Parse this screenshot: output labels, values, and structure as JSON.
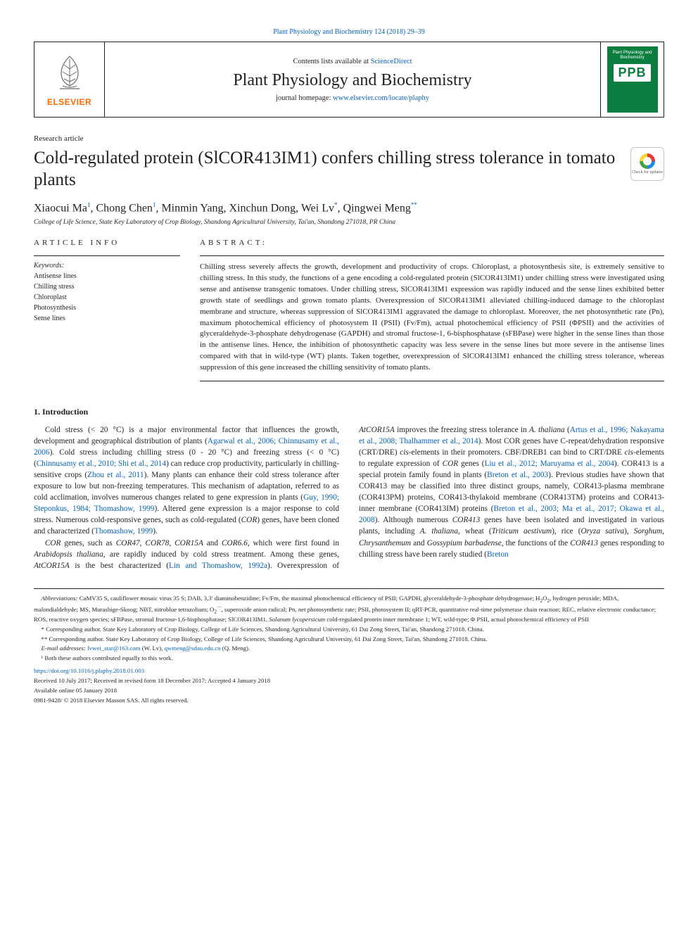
{
  "journal_ref": "Plant Physiology and Biochemistry 124 (2018) 29–39",
  "header": {
    "contents_prefix": "Contents lists available at ",
    "contents_link": "ScienceDirect",
    "journal_name": "Plant Physiology and Biochemistry",
    "homepage_prefix": "journal homepage: ",
    "homepage_link": "www.elsevier.com/locate/plaphy",
    "elsevier_text": "ELSEVIER",
    "cover_title": "Plant Physiology and Biochemistry",
    "cover_abbrev": "PPB"
  },
  "crossmark": "Check for updates",
  "article_type": "Research article",
  "title": "Cold-regulated protein (SlCOR413IM1) confers chilling stress tolerance in tomato plants",
  "authors_html": "Xiaocui Ma<sup>1</sup>, Chong Chen<sup>1</sup>, Minmin Yang, Xinchun Dong, Wei Lv<sup>*</sup>, Qingwei Meng<sup>**</sup>",
  "affiliation": "College of Life Science, State Key Laboratory of Crop Biology, Shandong Agricultural University, Tai'an, Shandong 271018, PR China",
  "article_info_heading": "ARTICLE INFO",
  "abstract_heading": "ABSTRACT:",
  "keywords_label": "Keywords:",
  "keywords": [
    "Antisense lines",
    "Chilling stress",
    "Chloroplast",
    "Photosynthesis",
    "Sense lines"
  ],
  "abstract": "Chilling stress severely affects the growth, development and productivity of crops. Chloroplast, a photosynthesis site, is extremely sensitive to chilling stress. In this study, the functions of a gene encoding a cold-regulated protein (SlCOR413IM1) under chilling stress were investigated using sense and antisense transgenic tomatoes. Under chilling stress, SlCOR413IM1 expression was rapidly induced and the sense lines exhibited better growth state of seedlings and grown tomato plants. Overexpression of SlCOR413IM1 alleviated chilling-induced damage to the chloroplast membrane and structure, whereas suppression of SlCOR413IM1 aggravated the damage to chloroplast. Moreover, the net photosynthetic rate (Pn), maximum photochemical efficiency of photosystem II (PSII) (Fv/Fm), actual photochemical efficiency of PSII (ΦPSII) and the activities of glyceraldehyde-3-phosphate dehydrogenase (GAPDH) and stromal fructose-1, 6-bisphosphatase (sFBPase) were higher in the sense lines than those in the antisense lines. Hence, the inhibition of photosynthetic capacity was less severe in the sense lines but more severe in the antisense lines compared with that in wild-type (WT) plants. Taken together, overexpression of SlCOR413IM1 enhanced the chilling stress tolerance, whereas suppression of this gene increased the chilling sensitivity of tomato plants.",
  "intro_heading": "1. Introduction",
  "intro_p1_html": "Cold stress (&lt; 20 °C) is a major environmental factor that influences the growth, development and geographical distribution of plants (<a class='link'>Agarwal et al., 2006; Chinnusamy et al., 2006</a>). Cold stress including chilling stress (0 - 20 °C) and freezing stress (&lt; 0 °C) (<a class='link'>Chinnusamy et al., 2010; Shi et al., 2014</a>) can reduce crop productivity, particularly in chilling-sensitive crops (<a class='link'>Zhou et al., 2011</a>). Many plants can enhance their cold stress tolerance after exposure to low but non-freezing temperatures. This mechanism of adaptation, referred to as cold acclimation, involves numerous changes related to gene expression in plants (<a class='link'>Guy, 1990; Steponkus, 1984; Thomashow, 1999</a>). Altered gene expression is a major response to cold stress. Numerous cold-responsive genes, such as cold-regulated (<em>COR</em>) genes, have been cloned and characterized (<a class='link'>Thomashow, 1999</a>).",
  "intro_p2_html": "<em>COR</em> genes, such as <em>COR47</em>, <em>COR78</em>, <em>COR15A</em> and <em>COR6.6</em>, which were first found in <em>Arabidopsis thaliana</em>, are rapidly induced by cold stress treatment. Among these genes, <em>AtCOR15A</em> is the best characterized (<a class='link'>Lin and Thomashow, 1992a</a>). Overexpression of <em>AtCOR15A</em> improves the freezing stress tolerance in <em>A. thaliana</em> (<a class='link'>Artus et al., 1996; Nakayama et al., 2008; Thalhammer et al., 2014</a>). Most COR genes have C-repeat/dehydration responsive (CRT/DRE) <em>cis</em>-elements in their promoters. CBF/DREB1 can bind to CRT/DRE <em>cis</em>-elements to regulate expression of <em>COR</em> genes (<a class='link'>Liu et al., 2012; Maruyama et al., 2004</a>). COR413 is a special protein family found in plants (<a class='link'>Breton et al., 2003</a>). Previous studies have shown that COR413 may be classified into three distinct groups, namely, COR413-plasma membrane (COR413PM) proteins, COR413-thylakoid membrane (COR413TM) proteins and COR413-inner membrane (COR413IM) proteins (<a class='link'>Breton et al., 2003; Ma et al., 2017; Okawa et al., 2008</a>). Although numerous <em>COR413</em> genes have been isolated and investigated in various plants, including <em>A. thaliana</em>, wheat (<em>Triticum aestivum</em>), rice (<em>Oryza sativa</em>), <em>Sorghum</em>, <em>Chrysanthemum</em> and <em>Gossypium barbadense</em>, the functions of the <em>COR413</em> genes responding to chilling stress have been rarely studied (<a class='link'>Breton</a>",
  "footnotes": {
    "abbrev_html": "<em>Abbreviations:</em> CaMV35 S, cauliflower mosaic virus 35 S; DAB, 3,3′ diaminobenzidine; Fv/Fm, the maximal photochemical efficiency of PSII; GAPDH, glyceraldehyde-3-phosphate dehydrogenase; H<sub>2</sub>O<sub>2</sub>, hydrogen peroxide; MDA, malondialdehyde; MS, Murashige-Skoog; NBT, nitroblue tetrazolium; O<sub>2</sub><sup>·−</sup>, superoxide anion radical; Pn, net photosynthetic rate; PSII, photosystem II; qRT-PCR, quantitative real-time polymerase chain reaction; REC, relative electronic conductance; ROS, reactive oxygen species; sFBPase, stromal fructose-1,6-bisphosphatase; SlCOR413IM1, <em>Solanum lycopersicum</em> cold-regulated protein inner membrane 1; WT, wild-type; Φ PSII, actual photochemical efficiency of PSII",
    "corr1": "* Corresponding author. State Key Laboratory of Crop Biology, College of Life Sciences, Shandong Agricultural University, 61 Dai Zong Street, Tai'an, Shandong 271018. China.",
    "corr2": "** Corresponding author. State Key Laboratory of Crop Biology, College of Life Sciences, Shandong Agricultural University, 61 Dai Zong Street, Tai'an, Shandong 271018. China.",
    "emails_prefix": "E-mail addresses: ",
    "email1": "lvwei_star@163.com",
    "email1_suffix": " (W. Lv), ",
    "email2": "qwmeng@sdau.edu.cn",
    "email2_suffix": " (Q. Meng).",
    "equal": "¹ Both these authors contributed equally to this work.",
    "doi": "https://doi.org/10.1016/j.plaphy.2018.01.003",
    "received": "Received 10 July 2017; Received in revised form 18 December 2017; Accepted 4 January 2018",
    "available": "Available online 05 January 2018",
    "issn_copyright": "0981-9428/ © 2018 Elsevier Masson SAS. All rights reserved."
  },
  "colors": {
    "link": "#0563c1",
    "text": "#231f20",
    "elsevier_orange": "#ff6b00",
    "cover_green": "#0a7d3f"
  }
}
